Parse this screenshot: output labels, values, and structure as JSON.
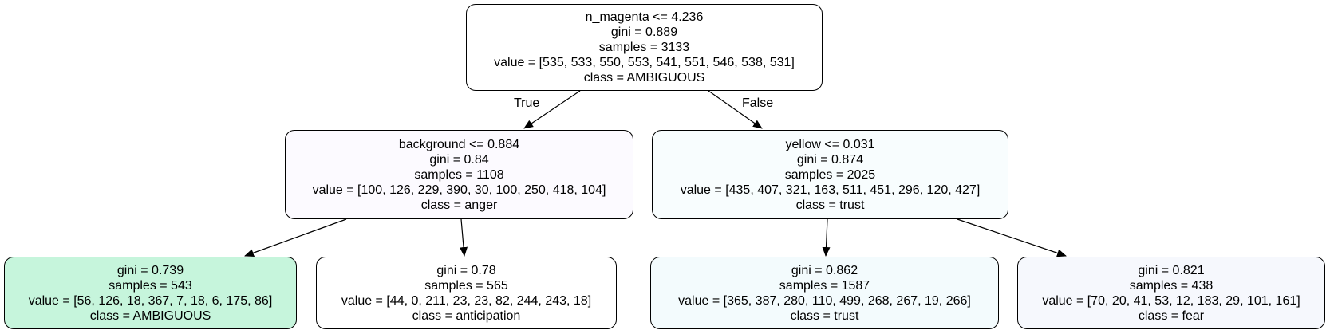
{
  "edge_labels": {
    "true": "True",
    "false": "False"
  },
  "nodes": {
    "root": {
      "split": "n_magenta <= 4.236",
      "gini": "gini = 0.889",
      "samples": "samples = 3133",
      "value": "value = [535, 533, 550, 553, 541, 551, 546, 538, 531]",
      "class": "class = AMBIGUOUS",
      "fill": "#ffffff"
    },
    "left": {
      "split": "background <= 0.884",
      "gini": "gini = 0.84",
      "samples": "samples = 1108",
      "value": "value = [100, 126, 229, 390, 30, 100, 250, 418, 104]",
      "class": "class = anger",
      "fill": "#fcfaff"
    },
    "right": {
      "split": "yellow <= 0.031",
      "gini": "gini = 0.874",
      "samples": "samples = 2025",
      "value": "value = [435, 407, 321, 163, 511, 451, 296, 120, 427]",
      "class": "class = trust",
      "fill": "#f8fdfe"
    },
    "leaf1": {
      "gini": "gini = 0.739",
      "samples": "samples = 543",
      "value": "value = [56, 126, 18, 367, 7, 18, 6, 175, 86]",
      "class": "class = AMBIGUOUS",
      "fill": "#c6f5dc"
    },
    "leaf2": {
      "gini": "gini = 0.78",
      "samples": "samples = 565",
      "value": "value = [44, 0, 211, 23, 23, 82, 244, 243, 18]",
      "class": "class = anticipation",
      "fill": "#ffffff"
    },
    "leaf3": {
      "gini": "gini = 0.862",
      "samples": "samples = 1587",
      "value": "value = [365, 387, 280, 110, 499, 268, 267, 19, 266]",
      "class": "class = trust",
      "fill": "#f3fbfd"
    },
    "leaf4": {
      "gini": "gini = 0.821",
      "samples": "samples = 438",
      "value": "value = [70, 20, 41, 53, 12, 183, 29, 101, 161]",
      "class": "class = fear",
      "fill": "#f6f8fd"
    }
  }
}
